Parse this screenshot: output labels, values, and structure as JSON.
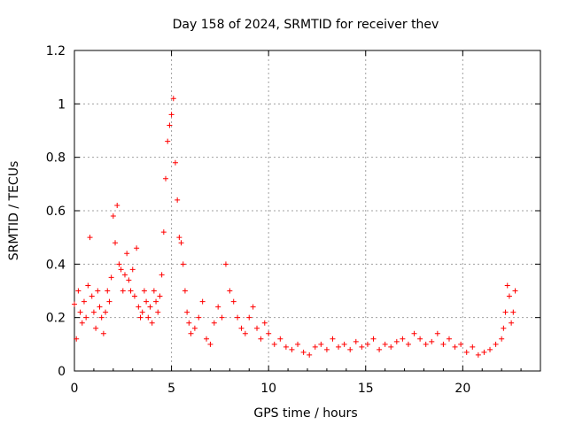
{
  "chart_data": {
    "type": "scatter",
    "title": "Day 158 of 2024, SRMTID for receiver thev",
    "xlabel": "GPS time / hours",
    "ylabel": "SRMTID / TECUs",
    "xlim": [
      0,
      24
    ],
    "ylim": [
      0,
      1.2
    ],
    "xticks": [
      0,
      5,
      10,
      15,
      20
    ],
    "xtick_labels": [
      "0",
      "5",
      "10",
      "15",
      "20"
    ],
    "yticks": [
      0,
      0.2,
      0.4,
      0.6,
      0.8,
      1,
      1.2
    ],
    "ytick_labels": [
      "0",
      "0.2",
      "0.4",
      "0.6",
      "0.8",
      "1",
      "1.2"
    ],
    "grid": true,
    "marker": "+",
    "color": "#ff0000",
    "series": [
      {
        "name": "SRMTID",
        "x": [
          0.0,
          0.1,
          0.2,
          0.3,
          0.4,
          0.5,
          0.6,
          0.7,
          0.8,
          0.9,
          1.0,
          1.1,
          1.2,
          1.3,
          1.4,
          1.5,
          1.6,
          1.7,
          1.8,
          1.9,
          2.0,
          2.1,
          2.2,
          2.3,
          2.4,
          2.5,
          2.6,
          2.7,
          2.8,
          2.9,
          3.0,
          3.1,
          3.2,
          3.3,
          3.4,
          3.5,
          3.6,
          3.7,
          3.8,
          3.9,
          4.0,
          4.1,
          4.2,
          4.3,
          4.4,
          4.5,
          4.6,
          4.7,
          4.8,
          4.9,
          5.0,
          5.1,
          5.2,
          5.3,
          5.4,
          5.5,
          5.6,
          5.7,
          5.8,
          5.9,
          6.0,
          6.2,
          6.4,
          6.6,
          6.8,
          7.0,
          7.2,
          7.4,
          7.6,
          7.8,
          8.0,
          8.2,
          8.4,
          8.6,
          8.8,
          9.0,
          9.2,
          9.4,
          9.6,
          9.8,
          10.0,
          10.3,
          10.6,
          10.9,
          11.2,
          11.5,
          11.8,
          12.1,
          12.4,
          12.7,
          13.0,
          13.3,
          13.6,
          13.9,
          14.2,
          14.5,
          14.8,
          15.1,
          15.4,
          15.7,
          16.0,
          16.3,
          16.6,
          16.9,
          17.2,
          17.5,
          17.8,
          18.1,
          18.4,
          18.7,
          19.0,
          19.3,
          19.6,
          19.9,
          20.2,
          20.5,
          20.8,
          21.1,
          21.4,
          21.7,
          22.0,
          22.1,
          22.2,
          22.3,
          22.4,
          22.5,
          22.6,
          22.7
        ],
        "values": [
          0.25,
          0.12,
          0.3,
          0.22,
          0.18,
          0.26,
          0.2,
          0.32,
          0.5,
          0.28,
          0.22,
          0.16,
          0.3,
          0.24,
          0.2,
          0.14,
          0.22,
          0.3,
          0.26,
          0.35,
          0.58,
          0.48,
          0.62,
          0.4,
          0.38,
          0.3,
          0.36,
          0.44,
          0.34,
          0.3,
          0.38,
          0.28,
          0.46,
          0.24,
          0.2,
          0.22,
          0.3,
          0.26,
          0.2,
          0.24,
          0.18,
          0.3,
          0.26,
          0.22,
          0.28,
          0.36,
          0.52,
          0.72,
          0.86,
          0.92,
          0.96,
          1.02,
          0.78,
          0.64,
          0.5,
          0.48,
          0.4,
          0.3,
          0.22,
          0.18,
          0.14,
          0.16,
          0.2,
          0.26,
          0.12,
          0.1,
          0.18,
          0.24,
          0.2,
          0.4,
          0.3,
          0.26,
          0.2,
          0.16,
          0.14,
          0.2,
          0.24,
          0.16,
          0.12,
          0.18,
          0.14,
          0.1,
          0.12,
          0.09,
          0.08,
          0.1,
          0.07,
          0.06,
          0.09,
          0.1,
          0.08,
          0.12,
          0.09,
          0.1,
          0.08,
          0.11,
          0.09,
          0.1,
          0.12,
          0.08,
          0.1,
          0.09,
          0.11,
          0.12,
          0.1,
          0.14,
          0.12,
          0.1,
          0.11,
          0.14,
          0.1,
          0.12,
          0.09,
          0.1,
          0.07,
          0.09,
          0.06,
          0.07,
          0.08,
          0.1,
          0.12,
          0.16,
          0.22,
          0.32,
          0.28,
          0.18,
          0.22,
          0.3
        ]
      }
    ]
  }
}
